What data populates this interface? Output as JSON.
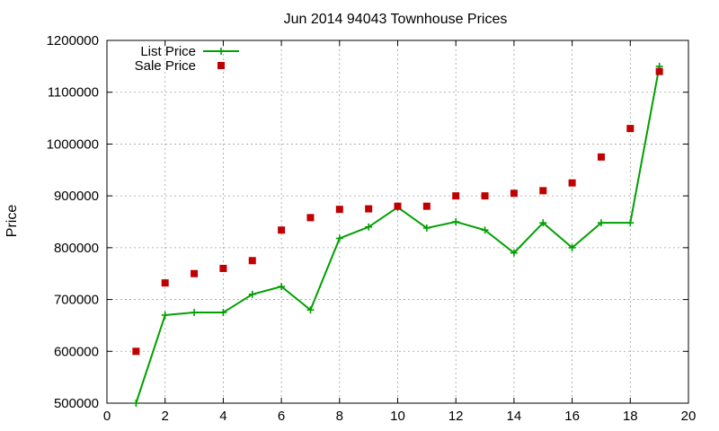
{
  "chart_data": {
    "type": "line",
    "title": "Jun 2014 94043 Townhouse Prices",
    "xlabel": "",
    "ylabel": "Price",
    "xlim": [
      0,
      20
    ],
    "ylim": [
      500000,
      1200000
    ],
    "xticks": [
      0,
      2,
      4,
      6,
      8,
      10,
      12,
      14,
      16,
      18,
      20
    ],
    "yticks": [
      500000,
      600000,
      700000,
      800000,
      900000,
      1000000,
      1100000,
      1200000
    ],
    "grid": true,
    "legend_position": "top-left",
    "series": [
      {
        "name": "List Price",
        "style": "lines+points",
        "marker": "plus",
        "color": "#00a000",
        "x": [
          1,
          2,
          3,
          4,
          5,
          6,
          7,
          8,
          9,
          10,
          11,
          12,
          13,
          14,
          15,
          16,
          17,
          18,
          19
        ],
        "y": [
          500000,
          670000,
          675000,
          675000,
          710000,
          725000,
          680000,
          818000,
          840000,
          878000,
          838000,
          850000,
          834000,
          790000,
          848000,
          800000,
          848000,
          848000,
          1150000
        ]
      },
      {
        "name": "Sale Price",
        "style": "points",
        "marker": "square",
        "color": "#c00000",
        "x": [
          1,
          2,
          3,
          4,
          5,
          6,
          7,
          8,
          9,
          10,
          11,
          12,
          13,
          14,
          15,
          16,
          17,
          18,
          19
        ],
        "y": [
          600000,
          732000,
          750000,
          760000,
          775000,
          834000,
          858000,
          874000,
          875000,
          880000,
          880000,
          900000,
          900000,
          905000,
          910000,
          925000,
          975000,
          1030000,
          1140000
        ]
      }
    ]
  }
}
